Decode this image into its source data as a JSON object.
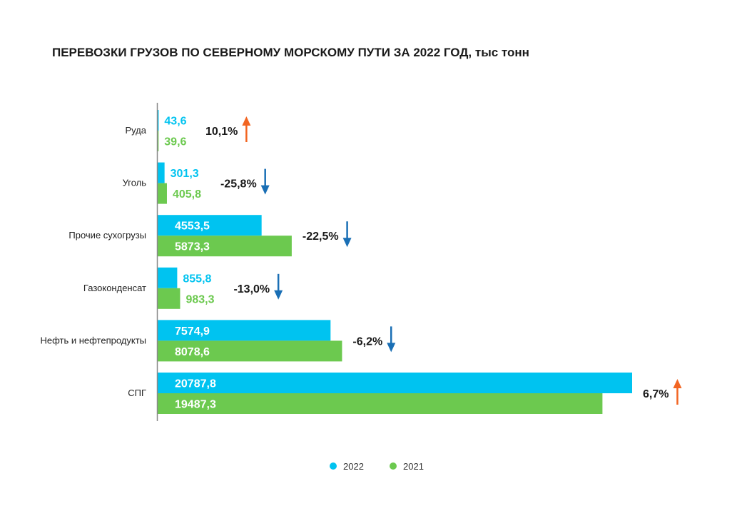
{
  "chart_data": {
    "type": "bar",
    "orientation": "horizontal",
    "title": "ПЕРЕВОЗКИ ГРУЗОВ ПО СЕВЕРНОМУ МОРСКОМУ ПУТИ ЗА 2022 ГОД, тыс тонн",
    "categories": [
      "Руда",
      "Уголь",
      "Прочие сухогрузы",
      "Газоконденсат",
      "Нефть и нефтепродукты",
      "СПГ"
    ],
    "series": [
      {
        "name": "2022",
        "color": "#00c3f0",
        "values": [
          43.6,
          301.3,
          4553.5,
          855.8,
          7574.9,
          20787.8
        ],
        "labels": [
          "43,6",
          "301,3",
          "4553,5",
          "855,8",
          "7574,9",
          "20787,8"
        ]
      },
      {
        "name": "2021",
        "color": "#6cc94f",
        "values": [
          39.6,
          405.8,
          5873.3,
          983.3,
          8078.6,
          19487.3
        ],
        "labels": [
          "39,6",
          "405,8",
          "5873,3",
          "983,3",
          "8078,6",
          "19487,3"
        ]
      }
    ],
    "changes": [
      {
        "label": "10,1%",
        "direction": "up"
      },
      {
        "label": "-25,8%",
        "direction": "down"
      },
      {
        "label": "-22,5%",
        "direction": "down"
      },
      {
        "label": "-13,0%",
        "direction": "down"
      },
      {
        "label": "-6,2%",
        "direction": "down"
      },
      {
        "label": "6,7%",
        "direction": "up"
      }
    ],
    "arrow_colors": {
      "up": "#f26522",
      "down": "#1a6fb5"
    },
    "xlim": [
      0,
      20787.8
    ],
    "grid": false,
    "legend_position": "bottom-center"
  }
}
